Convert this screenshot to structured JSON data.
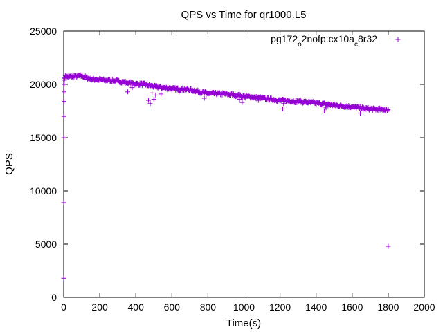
{
  "chart_data": {
    "type": "scatter",
    "title": "QPS vs Time for qr1000.L5",
    "xlabel": "Time(s)",
    "ylabel": "QPS",
    "xlim": [
      0,
      2000
    ],
    "ylim": [
      0,
      25000
    ],
    "xticks": [
      0,
      200,
      400,
      600,
      800,
      1000,
      1200,
      1400,
      1600,
      1800,
      2000
    ],
    "yticks": [
      0,
      5000,
      10000,
      15000,
      20000,
      25000
    ],
    "grid": false,
    "legend_position": "top-right",
    "marker": "+",
    "color": "#9400d3",
    "series": [
      {
        "name_parts": [
          {
            "text": "pg172",
            "sub": false
          },
          {
            "text": "o",
            "sub": true
          },
          {
            "text": "2nofp.cx10a",
            "sub": false
          },
          {
            "text": "c",
            "sub": true
          },
          {
            "text": "8r32",
            "sub": false
          }
        ],
        "ramp_points": [
          [
            0,
            1800
          ],
          [
            0,
            8900
          ],
          [
            1,
            15000
          ],
          [
            1,
            17000
          ],
          [
            2,
            18400
          ],
          [
            2,
            19300
          ],
          [
            3,
            20000
          ],
          [
            4,
            20400
          ],
          [
            5,
            20600
          ]
        ],
        "trend": [
          [
            5,
            20700
          ],
          [
            100,
            20800
          ],
          [
            150,
            20500
          ],
          [
            300,
            20300
          ],
          [
            400,
            20050
          ],
          [
            450,
            20000
          ],
          [
            500,
            19800
          ],
          [
            600,
            19600
          ],
          [
            700,
            19500
          ],
          [
            800,
            19150
          ],
          [
            900,
            19100
          ],
          [
            1000,
            18900
          ],
          [
            1100,
            18700
          ],
          [
            1200,
            18500
          ],
          [
            1300,
            18400
          ],
          [
            1400,
            18250
          ],
          [
            1500,
            18050
          ],
          [
            1600,
            17900
          ],
          [
            1700,
            17700
          ],
          [
            1800,
            17600
          ]
        ],
        "dips": [
          [
            355,
            19300
          ],
          [
            380,
            19700
          ],
          [
            470,
            18500
          ],
          [
            480,
            18200
          ],
          [
            490,
            19200
          ],
          [
            500,
            18600
          ],
          [
            510,
            19000
          ],
          [
            540,
            19100
          ],
          [
            640,
            19300
          ],
          [
            780,
            18700
          ],
          [
            790,
            19000
          ],
          [
            975,
            18600
          ],
          [
            990,
            18300
          ],
          [
            1010,
            18700
          ],
          [
            1080,
            18500
          ],
          [
            1215,
            17700
          ],
          [
            1220,
            18200
          ],
          [
            1445,
            17500
          ],
          [
            1455,
            17800
          ],
          [
            1645,
            17300
          ],
          [
            1660,
            17600
          ]
        ],
        "outliers": [
          [
            1800,
            4800
          ]
        ]
      }
    ]
  }
}
